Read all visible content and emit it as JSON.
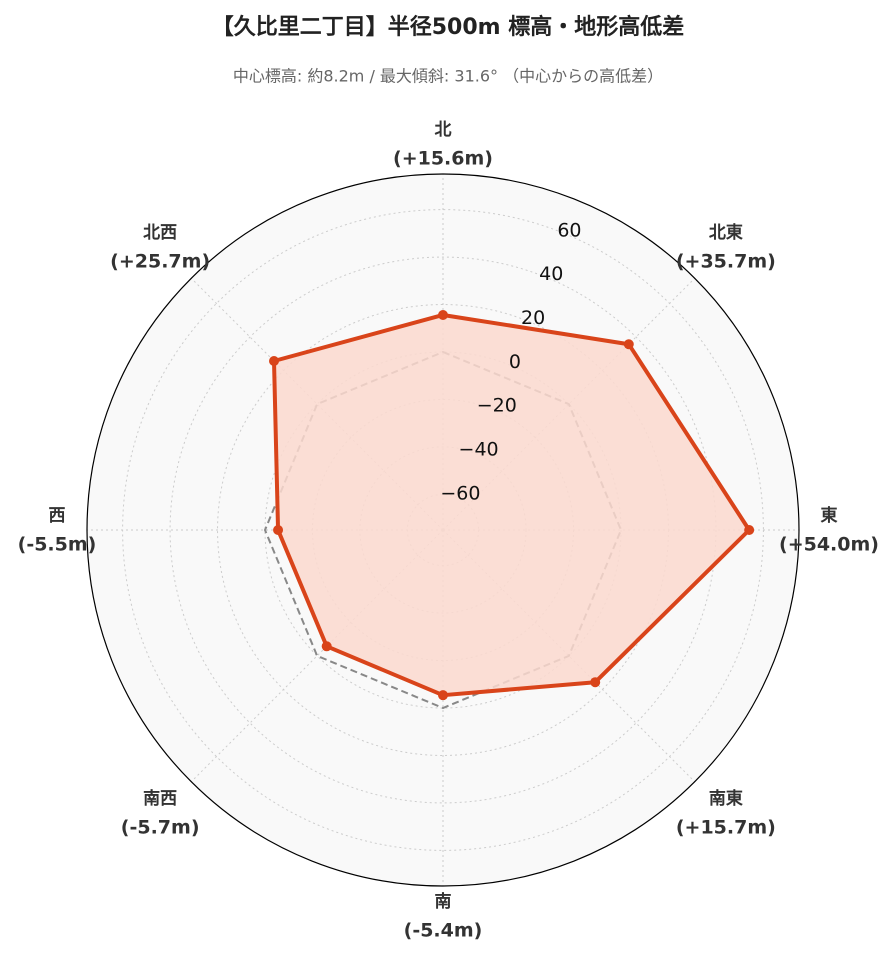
{
  "chart_data": {
    "type": "radar",
    "title": "【久比里二丁目】半径500m 標高・地形高低差",
    "subtitle": "中心標高: 約8.2m / 最大傾斜: 31.6° （中心からの高低差）",
    "categories": [
      "北",
      "北東",
      "東",
      "南東",
      "南",
      "南西",
      "西",
      "北西"
    ],
    "values": [
      15.6,
      35.7,
      54.0,
      15.7,
      -5.4,
      -5.7,
      -5.5,
      25.7
    ],
    "value_labels": [
      "(+15.6m)",
      "(+35.7m)",
      "(+54.0m)",
      "(+15.7m)",
      "(-5.4m)",
      "(-5.7m)",
      "(-5.5m)",
      "(+25.7m)"
    ],
    "color": "#d9441a",
    "fill_color": "#fbd9cf",
    "ylim": [
      -75,
      75
    ],
    "yticks": [
      {
        "value": -60,
        "label": "−60"
      },
      {
        "value": -40,
        "label": "−40"
      },
      {
        "value": -20,
        "label": "−20"
      },
      0,
      20,
      40,
      60
    ],
    "grid": true,
    "zero_line": true
  }
}
